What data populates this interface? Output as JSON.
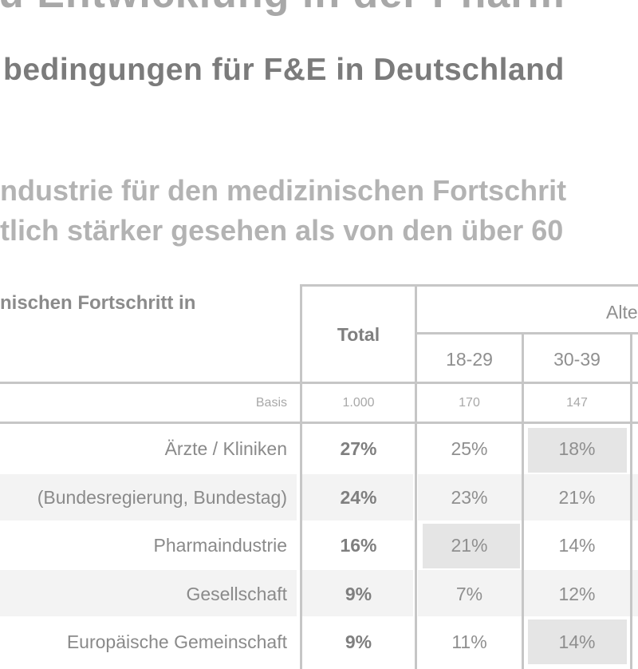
{
  "title_line1": "u Entwicklung in der Pharm",
  "title_line2": "bedingungen für F&E in Deutschland",
  "headline_line1": "ndustrie für den medizinischen Fortschrit",
  "headline_line2": "tlich stärker gesehen als von den über 60",
  "question_label": "nischen Fortschritt in",
  "table": {
    "total_header": "Total",
    "group_header": "Alte",
    "age_groups": [
      "18-29",
      "30-39"
    ],
    "basis_label": "Basis",
    "basis_values": [
      "1.000",
      "170",
      "147"
    ],
    "rows": [
      {
        "label": "Ärzte / Kliniken",
        "total": "27%",
        "values": [
          "25%",
          "18%"
        ]
      },
      {
        "label": "(Bundesregierung, Bundestag)",
        "total": "24%",
        "values": [
          "23%",
          "21%"
        ]
      },
      {
        "label": "Pharmaindustrie",
        "total": "16%",
        "values": [
          "21%",
          "14%"
        ]
      },
      {
        "label": "Gesellschaft",
        "total": "9%",
        "values": [
          "7%",
          "12%"
        ]
      },
      {
        "label": "Europäische Gemeinschaft",
        "total": "9%",
        "values": [
          "11%",
          "14%"
        ]
      }
    ]
  }
}
